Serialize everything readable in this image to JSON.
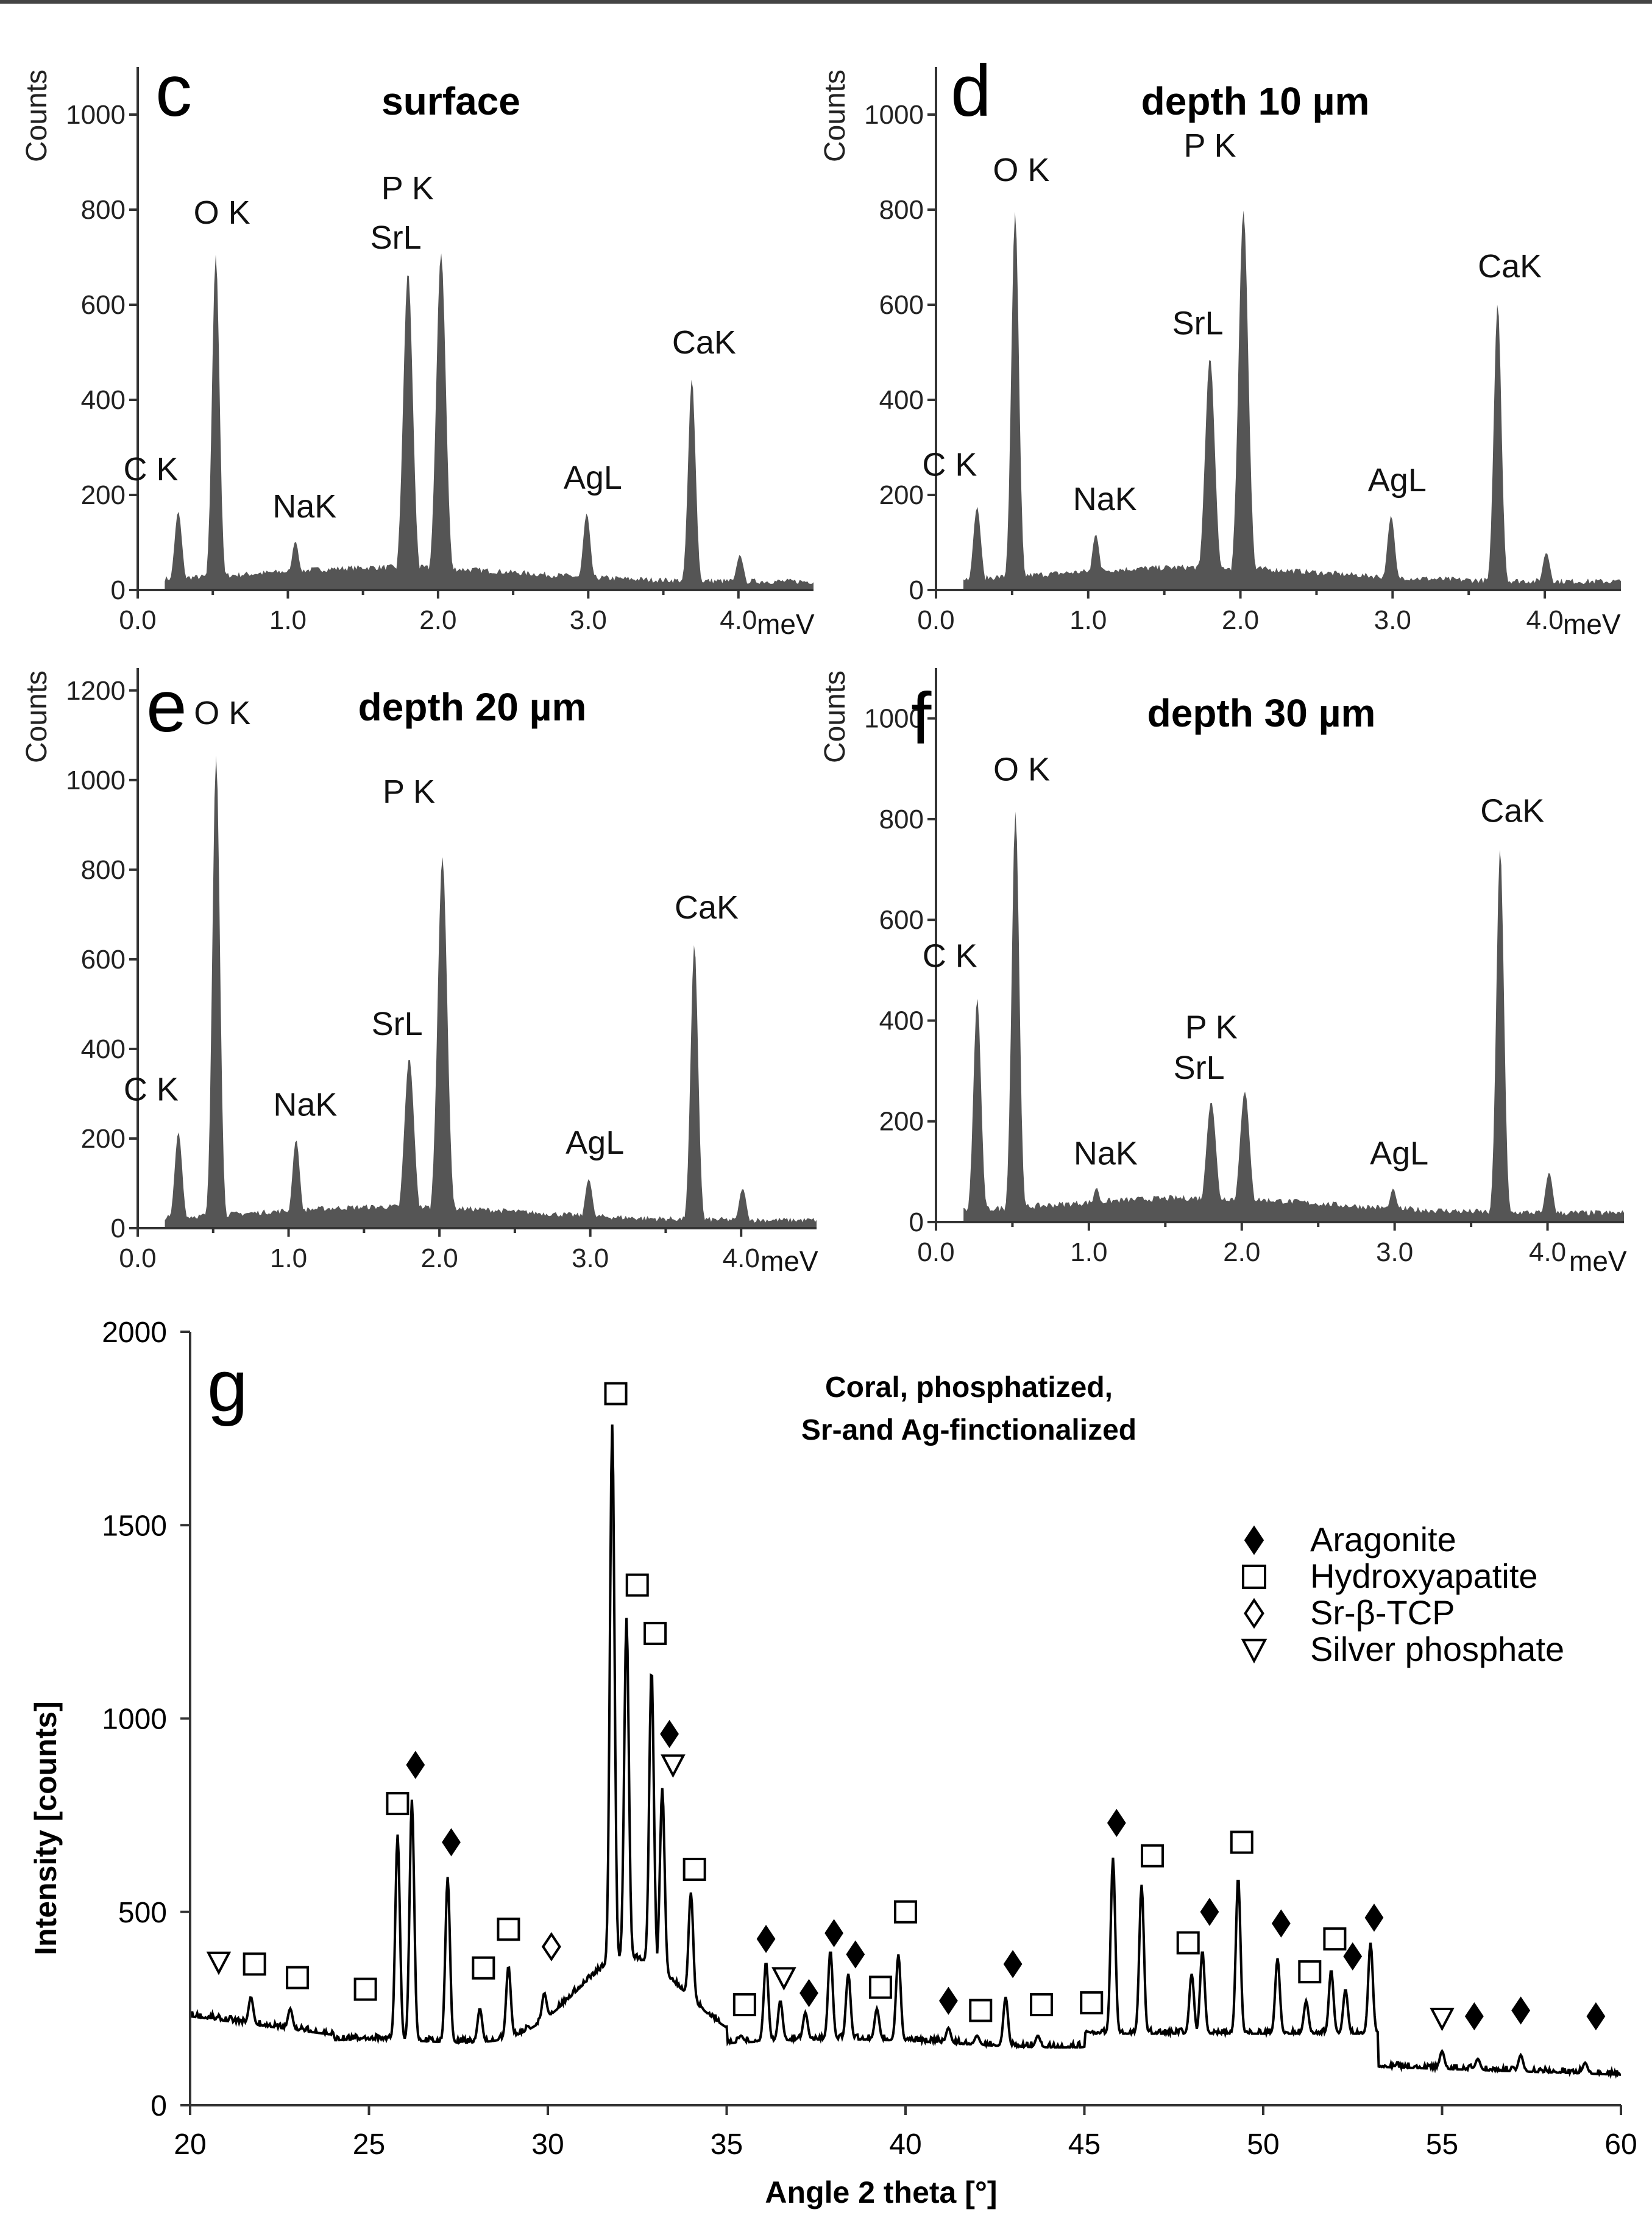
{
  "top_rule_color": "#444444",
  "chart_data": [
    {
      "type": "area",
      "panel": "c",
      "title": "surface",
      "ylabel": "Counts",
      "xunit": "meV",
      "xlim": [
        0.0,
        4.5
      ],
      "ylim": [
        0,
        1100
      ],
      "x_ticks": [
        "0.0",
        "1.0",
        "2.0",
        "3.0",
        "4.0"
      ],
      "y_ticks": [
        "0",
        "200",
        "400",
        "600",
        "800",
        "1000"
      ],
      "fill_color": "#555555",
      "peaks": [
        {
          "label": "C K",
          "x": 0.27,
          "y": 160
        },
        {
          "label": "O K",
          "x": 0.52,
          "y": 700
        },
        {
          "label": "NaK",
          "x": 1.05,
          "y": 95
        },
        {
          "label": "SrL",
          "x": 1.8,
          "y": 660
        },
        {
          "label": "P K",
          "x": 2.02,
          "y": 700
        },
        {
          "label": "AgL",
          "x": 2.99,
          "y": 155
        },
        {
          "label": "CaK",
          "x": 3.69,
          "y": 440
        },
        {
          "label": "",
          "x": 4.01,
          "y": 70
        }
      ]
    },
    {
      "type": "area",
      "panel": "d",
      "title": "depth 10 µm",
      "ylabel": "Counts",
      "xunit": "meV",
      "xlim": [
        0.0,
        4.5
      ],
      "ylim": [
        0,
        1100
      ],
      "x_ticks": [
        "0.0",
        "1.0",
        "2.0",
        "3.0",
        "4.0"
      ],
      "y_ticks": [
        "0",
        "200",
        "400",
        "600",
        "800",
        "1000"
      ],
      "fill_color": "#555555",
      "peaks": [
        {
          "label": "C K",
          "x": 0.27,
          "y": 170
        },
        {
          "label": "O K",
          "x": 0.52,
          "y": 790
        },
        {
          "label": "NaK",
          "x": 1.05,
          "y": 110
        },
        {
          "label": "SrL",
          "x": 1.8,
          "y": 480
        },
        {
          "label": "P K",
          "x": 2.02,
          "y": 790
        },
        {
          "label": "AgL",
          "x": 2.99,
          "y": 150
        },
        {
          "label": "CaK",
          "x": 3.69,
          "y": 600
        },
        {
          "label": "",
          "x": 4.01,
          "y": 75
        }
      ]
    },
    {
      "type": "area",
      "panel": "e",
      "title": "depth 20 µm",
      "ylabel": "Counts",
      "xunit": "meV",
      "xlim": [
        0.0,
        4.5
      ],
      "ylim": [
        0,
        1250
      ],
      "x_ticks": [
        "0.0",
        "1.0",
        "2.0",
        "3.0",
        "4.0"
      ],
      "y_ticks": [
        "0",
        "200",
        "400",
        "600",
        "800",
        "1000",
        "1200"
      ],
      "fill_color": "#555555",
      "peaks": [
        {
          "label": "C K",
          "x": 0.27,
          "y": 210
        },
        {
          "label": "O K",
          "x": 0.52,
          "y": 1050
        },
        {
          "label": "NaK",
          "x": 1.05,
          "y": 190
        },
        {
          "label": "SrL",
          "x": 1.8,
          "y": 370
        },
        {
          "label": "P K",
          "x": 2.02,
          "y": 820
        },
        {
          "label": "AgL",
          "x": 2.99,
          "y": 105
        },
        {
          "label": "CaK",
          "x": 3.69,
          "y": 630
        },
        {
          "label": "",
          "x": 4.01,
          "y": 85
        }
      ]
    },
    {
      "type": "area",
      "panel": "f",
      "title": "depth 30 µm",
      "ylabel": "Counts",
      "xunit": "meV",
      "xlim": [
        0.0,
        4.5
      ],
      "ylim": [
        0,
        1100
      ],
      "x_ticks": [
        "0.0",
        "1.0",
        "2.0",
        "3.0",
        "4.0"
      ],
      "y_ticks": [
        "0",
        "200",
        "400",
        "600",
        "800",
        "1000"
      ],
      "fill_color": "#555555",
      "peaks": [
        {
          "label": "C K",
          "x": 0.27,
          "y": 440
        },
        {
          "label": "O K",
          "x": 0.52,
          "y": 810
        },
        {
          "label": "NaK",
          "x": 1.05,
          "y": 60
        },
        {
          "label": "SrL",
          "x": 1.8,
          "y": 230
        },
        {
          "label": "P K",
          "x": 2.02,
          "y": 250
        },
        {
          "label": "AgL",
          "x": 2.99,
          "y": 60
        },
        {
          "label": "CaK",
          "x": 3.69,
          "y": 740
        },
        {
          "label": "",
          "x": 4.01,
          "y": 95
        }
      ]
    },
    {
      "type": "line",
      "panel": "g",
      "title": "Coral, phosphatized,\nSr-and Ag-finctionalized",
      "title_lines": [
        "Coral, phosphatized,",
        "Sr-and Ag-finctionalized"
      ],
      "xlabel": "Angle 2 theta [°]",
      "ylabel": "Intensity [counts]",
      "xlim": [
        20,
        60
      ],
      "ylim": [
        0,
        2000
      ],
      "x_ticks": [
        "20",
        "25",
        "30",
        "35",
        "40",
        "45",
        "50",
        "55",
        "60"
      ],
      "y_ticks": [
        "0",
        "500",
        "1000",
        "1500",
        "2000"
      ],
      "line_color": "#000000",
      "peaks": [
        {
          "x": 21.7,
          "y": 280
        },
        {
          "x": 22.8,
          "y": 250
        },
        {
          "x": 25.8,
          "y": 700
        },
        {
          "x": 26.2,
          "y": 790
        },
        {
          "x": 27.2,
          "y": 590
        },
        {
          "x": 28.1,
          "y": 250
        },
        {
          "x": 28.9,
          "y": 360
        },
        {
          "x": 29.9,
          "y": 290
        },
        {
          "x": 31.8,
          "y": 1760
        },
        {
          "x": 32.2,
          "y": 1260
        },
        {
          "x": 32.9,
          "y": 1130
        },
        {
          "x": 33.2,
          "y": 820
        },
        {
          "x": 34.0,
          "y": 550
        },
        {
          "x": 35.4,
          "y": 180
        },
        {
          "x": 36.1,
          "y": 370
        },
        {
          "x": 36.5,
          "y": 270
        },
        {
          "x": 37.2,
          "y": 240
        },
        {
          "x": 37.9,
          "y": 400
        },
        {
          "x": 38.4,
          "y": 340
        },
        {
          "x": 39.2,
          "y": 250
        },
        {
          "x": 39.8,
          "y": 390
        },
        {
          "x": 41.2,
          "y": 200
        },
        {
          "x": 42.0,
          "y": 180
        },
        {
          "x": 42.8,
          "y": 280
        },
        {
          "x": 43.7,
          "y": 180
        },
        {
          "x": 45.1,
          "y": 190
        },
        {
          "x": 45.8,
          "y": 640
        },
        {
          "x": 46.6,
          "y": 570
        },
        {
          "x": 48.0,
          "y": 340
        },
        {
          "x": 48.3,
          "y": 400
        },
        {
          "x": 49.3,
          "y": 590
        },
        {
          "x": 50.4,
          "y": 380
        },
        {
          "x": 51.2,
          "y": 270
        },
        {
          "x": 51.9,
          "y": 350
        },
        {
          "x": 52.3,
          "y": 300
        },
        {
          "x": 53.0,
          "y": 420
        },
        {
          "x": 55.0,
          "y": 140
        },
        {
          "x": 56.0,
          "y": 120
        },
        {
          "x": 57.2,
          "y": 130
        },
        {
          "x": 59.0,
          "y": 110
        }
      ],
      "legend": [
        {
          "symbol": "filled-diamond",
          "label": "Aragonite"
        },
        {
          "symbol": "open-square",
          "label": "Hydroxyapatite"
        },
        {
          "symbol": "open-diamond",
          "label": "Sr-β-TCP"
        },
        {
          "symbol": "open-triangle-down",
          "label": "Silver phosphate"
        }
      ],
      "markers": [
        {
          "symbol": "open-triangle-down",
          "x": 20.8,
          "y": 370
        },
        {
          "symbol": "open-square",
          "x": 21.8,
          "y": 365
        },
        {
          "symbol": "open-square",
          "x": 23.0,
          "y": 330
        },
        {
          "symbol": "open-square",
          "x": 24.9,
          "y": 300
        },
        {
          "symbol": "open-square",
          "x": 25.8,
          "y": 780
        },
        {
          "symbol": "filled-diamond",
          "x": 26.3,
          "y": 880
        },
        {
          "symbol": "filled-diamond",
          "x": 27.3,
          "y": 680
        },
        {
          "symbol": "open-square",
          "x": 28.2,
          "y": 355
        },
        {
          "symbol": "open-square",
          "x": 28.9,
          "y": 455
        },
        {
          "symbol": "open-diamond",
          "x": 30.1,
          "y": 410
        },
        {
          "symbol": "open-square",
          "x": 31.9,
          "y": 1840
        },
        {
          "symbol": "open-square",
          "x": 32.5,
          "y": 1345
        },
        {
          "symbol": "open-square",
          "x": 33.0,
          "y": 1220
        },
        {
          "symbol": "filled-diamond",
          "x": 33.4,
          "y": 960
        },
        {
          "symbol": "open-triangle-down",
          "x": 33.5,
          "y": 880
        },
        {
          "symbol": "open-square",
          "x": 34.1,
          "y": 610
        },
        {
          "symbol": "open-square",
          "x": 35.5,
          "y": 260
        },
        {
          "symbol": "filled-diamond",
          "x": 36.1,
          "y": 430
        },
        {
          "symbol": "open-triangle-down",
          "x": 36.6,
          "y": 330
        },
        {
          "symbol": "filled-diamond",
          "x": 37.3,
          "y": 290
        },
        {
          "symbol": "filled-diamond",
          "x": 38.0,
          "y": 445
        },
        {
          "symbol": "filled-diamond",
          "x": 38.6,
          "y": 390
        },
        {
          "symbol": "open-square",
          "x": 39.3,
          "y": 305
        },
        {
          "symbol": "open-square",
          "x": 40.0,
          "y": 500
        },
        {
          "symbol": "filled-diamond",
          "x": 41.2,
          "y": 270
        },
        {
          "symbol": "open-square",
          "x": 42.1,
          "y": 245
        },
        {
          "symbol": "filled-diamond",
          "x": 43.0,
          "y": 365
        },
        {
          "symbol": "open-square",
          "x": 43.8,
          "y": 260
        },
        {
          "symbol": "open-square",
          "x": 45.2,
          "y": 265
        },
        {
          "symbol": "filled-diamond",
          "x": 45.9,
          "y": 730
        },
        {
          "symbol": "open-square",
          "x": 46.9,
          "y": 645
        },
        {
          "symbol": "open-square",
          "x": 47.9,
          "y": 420
        },
        {
          "symbol": "filled-diamond",
          "x": 48.5,
          "y": 500
        },
        {
          "symbol": "open-square",
          "x": 49.4,
          "y": 680
        },
        {
          "symbol": "filled-diamond",
          "x": 50.5,
          "y": 470
        },
        {
          "symbol": "open-square",
          "x": 51.3,
          "y": 345
        },
        {
          "symbol": "open-square",
          "x": 52.0,
          "y": 430
        },
        {
          "symbol": "filled-diamond",
          "x": 52.5,
          "y": 385
        },
        {
          "symbol": "filled-diamond",
          "x": 53.1,
          "y": 485
        },
        {
          "symbol": "open-triangle-down",
          "x": 55.0,
          "y": 225
        },
        {
          "symbol": "filled-diamond",
          "x": 55.9,
          "y": 230
        },
        {
          "symbol": "filled-diamond",
          "x": 57.2,
          "y": 245
        },
        {
          "symbol": "filled-diamond",
          "x": 59.3,
          "y": 230
        }
      ]
    }
  ]
}
